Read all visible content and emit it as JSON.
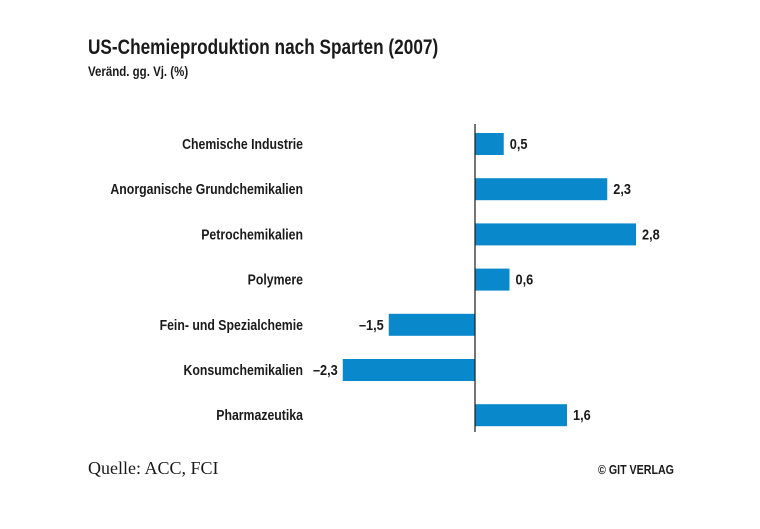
{
  "chart_data": {
    "type": "bar",
    "orientation": "horizontal",
    "title": "US-Chemieproduktion nach Sparten (2007)",
    "subtitle": "Veränd. gg. Vj. (%)",
    "categories": [
      "Chemische Industrie",
      "Anorganische Grundchemikalien",
      "Petrochemikalien",
      "Polymere",
      "Fein- und Spezialchemie",
      "Konsumchemikalien",
      "Pharmazeutika"
    ],
    "values": [
      0.5,
      2.3,
      2.8,
      0.6,
      -1.5,
      -2.3,
      1.6
    ],
    "data_labels": [
      "0,5",
      "2,3",
      "2,8",
      "0,6",
      "–1,5",
      "–2,3",
      "1,6"
    ],
    "xlim": [
      -2.3,
      2.8
    ],
    "grid": false,
    "bar_color": "#0a88cc"
  },
  "footer": {
    "source": "Quelle: ACC, FCI",
    "copyright": "© GIT VERLAG"
  }
}
